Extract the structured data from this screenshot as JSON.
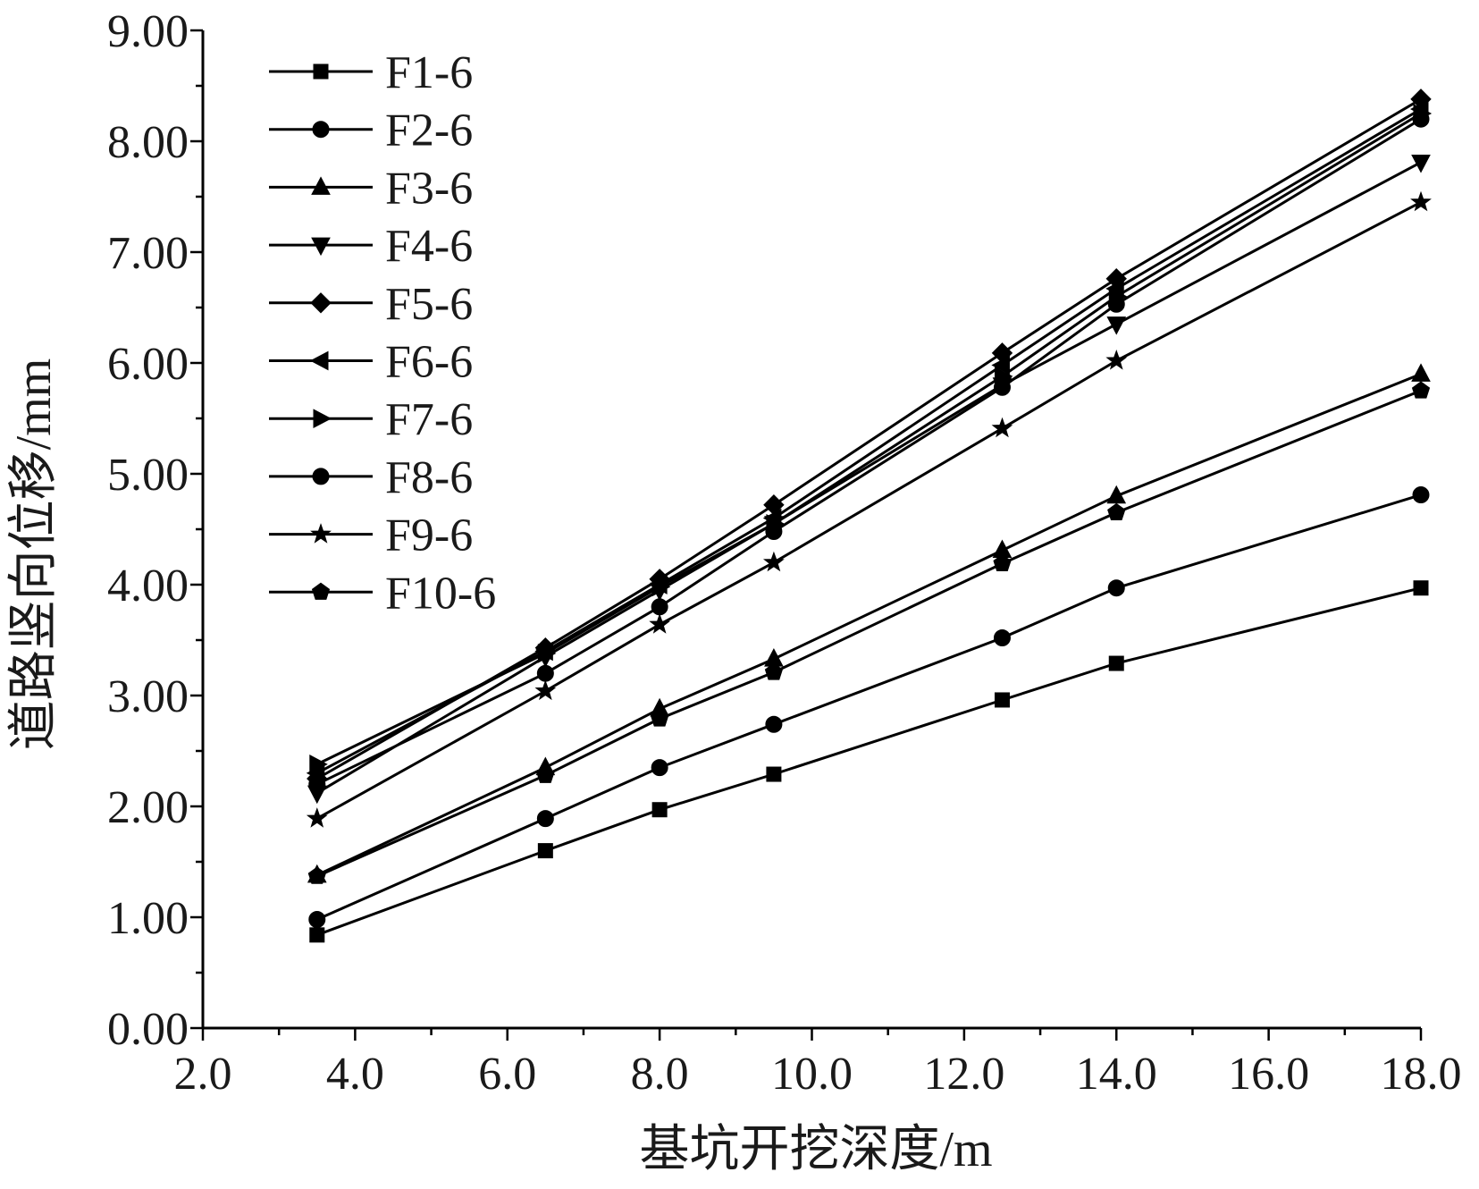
{
  "chart_data": {
    "type": "line",
    "xlabel": "基坑开挖深度/m",
    "ylabel": "道路竖向位移/mm",
    "xlim": [
      2.0,
      18.0
    ],
    "ylim": [
      0.0,
      9.0
    ],
    "xticks": [
      "2.0",
      "4.0",
      "6.0",
      "8.0",
      "10.0",
      "12.0",
      "14.0",
      "16.0",
      "18.0"
    ],
    "yticks": [
      "0.00",
      "1.00",
      "2.00",
      "3.00",
      "4.00",
      "5.00",
      "6.00",
      "7.00",
      "8.00",
      "9.00"
    ],
    "grid": false,
    "legend": "top-left",
    "color": "#000000",
    "x": [
      3.5,
      6.5,
      8.0,
      9.5,
      12.5,
      14.0,
      18.0
    ],
    "series": [
      {
        "name": "F1-6",
        "marker": "square",
        "values": [
          0.84,
          1.6,
          1.97,
          2.29,
          2.96,
          3.29,
          3.97
        ]
      },
      {
        "name": "F2-6",
        "marker": "circle",
        "values": [
          0.98,
          1.89,
          2.35,
          2.74,
          3.52,
          3.97,
          4.81
        ]
      },
      {
        "name": "F3-6",
        "marker": "triangle-up",
        "values": [
          1.38,
          2.35,
          2.88,
          3.33,
          4.31,
          4.8,
          5.9
        ]
      },
      {
        "name": "F4-6",
        "marker": "triangle-down",
        "values": [
          2.12,
          3.35,
          3.95,
          4.55,
          5.8,
          6.35,
          7.81
        ]
      },
      {
        "name": "F5-6",
        "marker": "diamond",
        "values": [
          2.25,
          3.43,
          4.05,
          4.72,
          6.09,
          6.76,
          8.38
        ]
      },
      {
        "name": "F6-6",
        "marker": "triangle-left",
        "values": [
          2.3,
          3.4,
          4.0,
          4.6,
          5.98,
          6.67,
          8.29
        ]
      },
      {
        "name": "F7-6",
        "marker": "triangle-right",
        "values": [
          2.38,
          3.38,
          3.98,
          4.55,
          5.88,
          6.6,
          8.25
        ]
      },
      {
        "name": "F8-6",
        "marker": "circle",
        "values": [
          2.2,
          3.2,
          3.8,
          4.48,
          5.78,
          6.53,
          8.2
        ]
      },
      {
        "name": "F9-6",
        "marker": "star",
        "values": [
          1.89,
          3.04,
          3.64,
          4.2,
          5.41,
          6.02,
          7.45
        ]
      },
      {
        "name": "F10-6",
        "marker": "pentagon",
        "values": [
          1.37,
          2.28,
          2.79,
          3.21,
          4.19,
          4.65,
          5.75
        ]
      }
    ]
  }
}
